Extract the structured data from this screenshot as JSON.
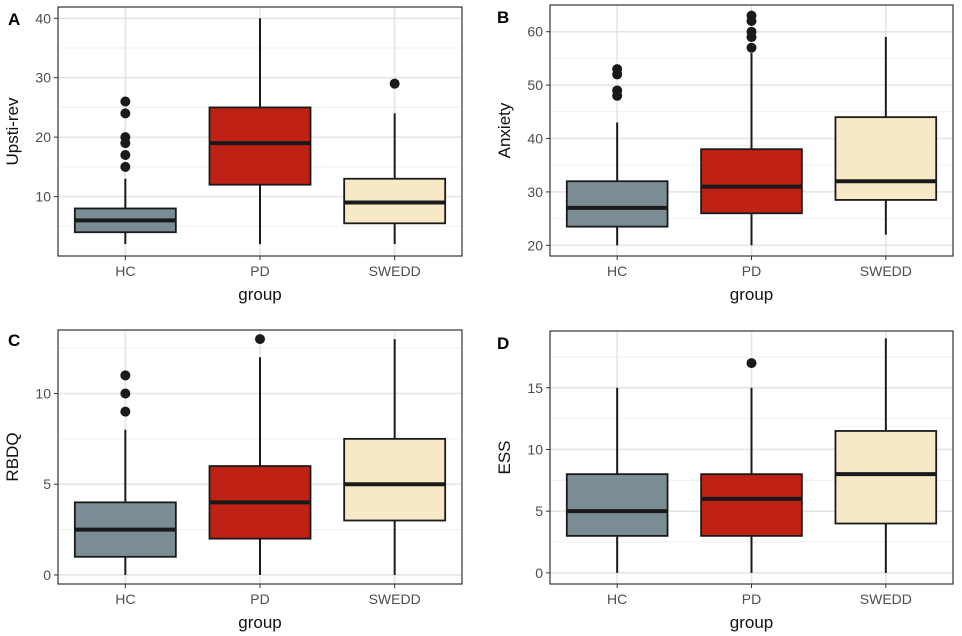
{
  "colors": {
    "HC": "#7b8d94",
    "PD": "#bf2214",
    "SWEDD": "#f7e9c5",
    "grid": "#e5e5e5",
    "box_outline": "#1a1a1a",
    "axis_text": "#4d4d4d"
  },
  "chart_data": [
    {
      "panel": "A",
      "type": "boxplot",
      "xlabel": "group",
      "ylabel": "Upsti-rev",
      "categories": [
        "HC",
        "PD",
        "SWEDD"
      ],
      "ylim": [
        0,
        41.9
      ],
      "yticks": [
        10,
        20,
        30,
        40
      ],
      "grid": true,
      "boxes": [
        {
          "group": "HC",
          "lower_whisker": 2,
          "q1": 4,
          "median": 6,
          "q3": 8,
          "upper_whisker": 13,
          "outliers": [
            15,
            17,
            19,
            20,
            24,
            26
          ]
        },
        {
          "group": "PD",
          "lower_whisker": 2,
          "q1": 12,
          "median": 19,
          "q3": 25,
          "upper_whisker": 40,
          "outliers": []
        },
        {
          "group": "SWEDD",
          "lower_whisker": 2,
          "q1": 5.5,
          "median": 9,
          "q3": 13,
          "upper_whisker": 24,
          "outliers": [
            29
          ]
        }
      ]
    },
    {
      "panel": "B",
      "type": "boxplot",
      "xlabel": "group",
      "ylabel": "Anxiety",
      "categories": [
        "HC",
        "PD",
        "SWEDD"
      ],
      "ylim": [
        18,
        65
      ],
      "yticks": [
        20,
        30,
        40,
        50,
        60
      ],
      "grid": true,
      "boxes": [
        {
          "group": "HC",
          "lower_whisker": 20,
          "q1": 23.5,
          "median": 27,
          "q3": 32,
          "upper_whisker": 43,
          "outliers": [
            48,
            49,
            52,
            53
          ]
        },
        {
          "group": "PD",
          "lower_whisker": 20,
          "q1": 26,
          "median": 31,
          "q3": 38,
          "upper_whisker": 56,
          "outliers": [
            57,
            59,
            60,
            62,
            63
          ]
        },
        {
          "group": "SWEDD",
          "lower_whisker": 22,
          "q1": 28.5,
          "median": 32,
          "q3": 44,
          "upper_whisker": 59,
          "outliers": []
        }
      ]
    },
    {
      "panel": "C",
      "type": "boxplot",
      "xlabel": "group",
      "ylabel": "RBDQ",
      "categories": [
        "HC",
        "PD",
        "SWEDD"
      ],
      "ylim": [
        -0.5,
        13.5
      ],
      "yticks": [
        0,
        5,
        10
      ],
      "grid": true,
      "boxes": [
        {
          "group": "HC",
          "lower_whisker": 0,
          "q1": 1,
          "median": 2.5,
          "q3": 4,
          "upper_whisker": 8,
          "outliers": [
            9,
            10,
            11
          ]
        },
        {
          "group": "PD",
          "lower_whisker": 0,
          "q1": 2,
          "median": 4,
          "q3": 6,
          "upper_whisker": 12,
          "outliers": [
            13
          ]
        },
        {
          "group": "SWEDD",
          "lower_whisker": 0,
          "q1": 3,
          "median": 5,
          "q3": 7.5,
          "upper_whisker": 13,
          "outliers": []
        }
      ]
    },
    {
      "panel": "D",
      "type": "boxplot",
      "xlabel": "group",
      "ylabel": "ESS",
      "categories": [
        "HC",
        "PD",
        "SWEDD"
      ],
      "ylim": [
        -0.9,
        19.6
      ],
      "yticks": [
        0,
        5,
        10,
        15
      ],
      "grid": true,
      "boxes": [
        {
          "group": "HC",
          "lower_whisker": 0,
          "q1": 3,
          "median": 5,
          "q3": 8,
          "upper_whisker": 15,
          "outliers": []
        },
        {
          "group": "PD",
          "lower_whisker": 0,
          "q1": 3,
          "median": 6,
          "q3": 8,
          "upper_whisker": 15,
          "outliers": [
            17
          ]
        },
        {
          "group": "SWEDD",
          "lower_whisker": 0,
          "q1": 4,
          "median": 8,
          "q3": 11.5,
          "upper_whisker": 19,
          "outliers": []
        }
      ]
    }
  ]
}
